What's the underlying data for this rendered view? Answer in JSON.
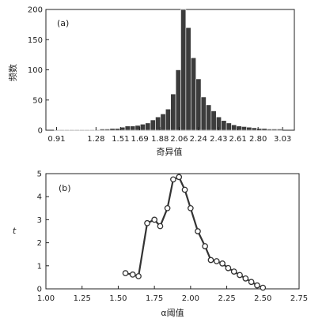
{
  "chart_data": [
    {
      "type": "bar",
      "panel": "(a)",
      "xlabel": "奇异值",
      "ylabel": "频数",
      "ylim": [
        0,
        200
      ],
      "yticks": [
        0,
        50,
        100,
        150,
        200
      ],
      "xlim": [
        0.81,
        3.14
      ],
      "xticks": [
        0.91,
        1.28,
        1.51,
        1.69,
        1.88,
        2.06,
        2.24,
        2.43,
        2.61,
        2.8,
        3.03
      ],
      "xtick_labels": [
        "0.91",
        "1.28",
        "1.51",
        "1.69",
        "1.88",
        "2.06",
        "2.24",
        "2.43",
        "2.61",
        "2.80",
        "3.03"
      ],
      "bin_start": 0.84,
      "bin_width": 0.0475,
      "values": [
        0,
        1,
        1,
        1,
        1,
        1,
        1,
        1,
        1,
        1,
        2,
        2,
        3,
        3,
        5,
        7,
        7,
        8,
        10,
        12,
        17,
        22,
        27,
        35,
        60,
        100,
        200,
        170,
        120,
        85,
        55,
        42,
        32,
        22,
        16,
        12,
        9,
        7,
        6,
        5,
        4,
        3,
        3,
        2,
        2,
        2
      ]
    },
    {
      "type": "line",
      "panel": "(b)",
      "xlabel": "α阈值",
      "ylabel": "t",
      "xlim": [
        1.0,
        2.75
      ],
      "ylim": [
        0,
        5
      ],
      "xticks": [
        1.0,
        1.25,
        1.5,
        1.75,
        2.0,
        2.25,
        2.5,
        2.75
      ],
      "xtick_labels": [
        "1.00",
        "1.25",
        "1.50",
        "1.75",
        "2.00",
        "2.25",
        "2.50",
        "2.75"
      ],
      "yticks": [
        0,
        1,
        2,
        3,
        4,
        5
      ],
      "x": [
        1.55,
        1.6,
        1.64,
        1.7,
        1.75,
        1.79,
        1.84,
        1.88,
        1.92,
        1.96,
        2.0,
        2.05,
        2.1,
        2.14,
        2.18,
        2.22,
        2.26,
        2.3,
        2.34,
        2.38,
        2.42,
        2.46,
        2.5
      ],
      "y": [
        0.68,
        0.62,
        0.55,
        2.85,
        3.0,
        2.72,
        3.5,
        4.75,
        4.85,
        4.3,
        3.5,
        2.5,
        1.85,
        1.25,
        1.2,
        1.1,
        0.9,
        0.75,
        0.6,
        0.45,
        0.3,
        0.15,
        0.05
      ]
    }
  ]
}
